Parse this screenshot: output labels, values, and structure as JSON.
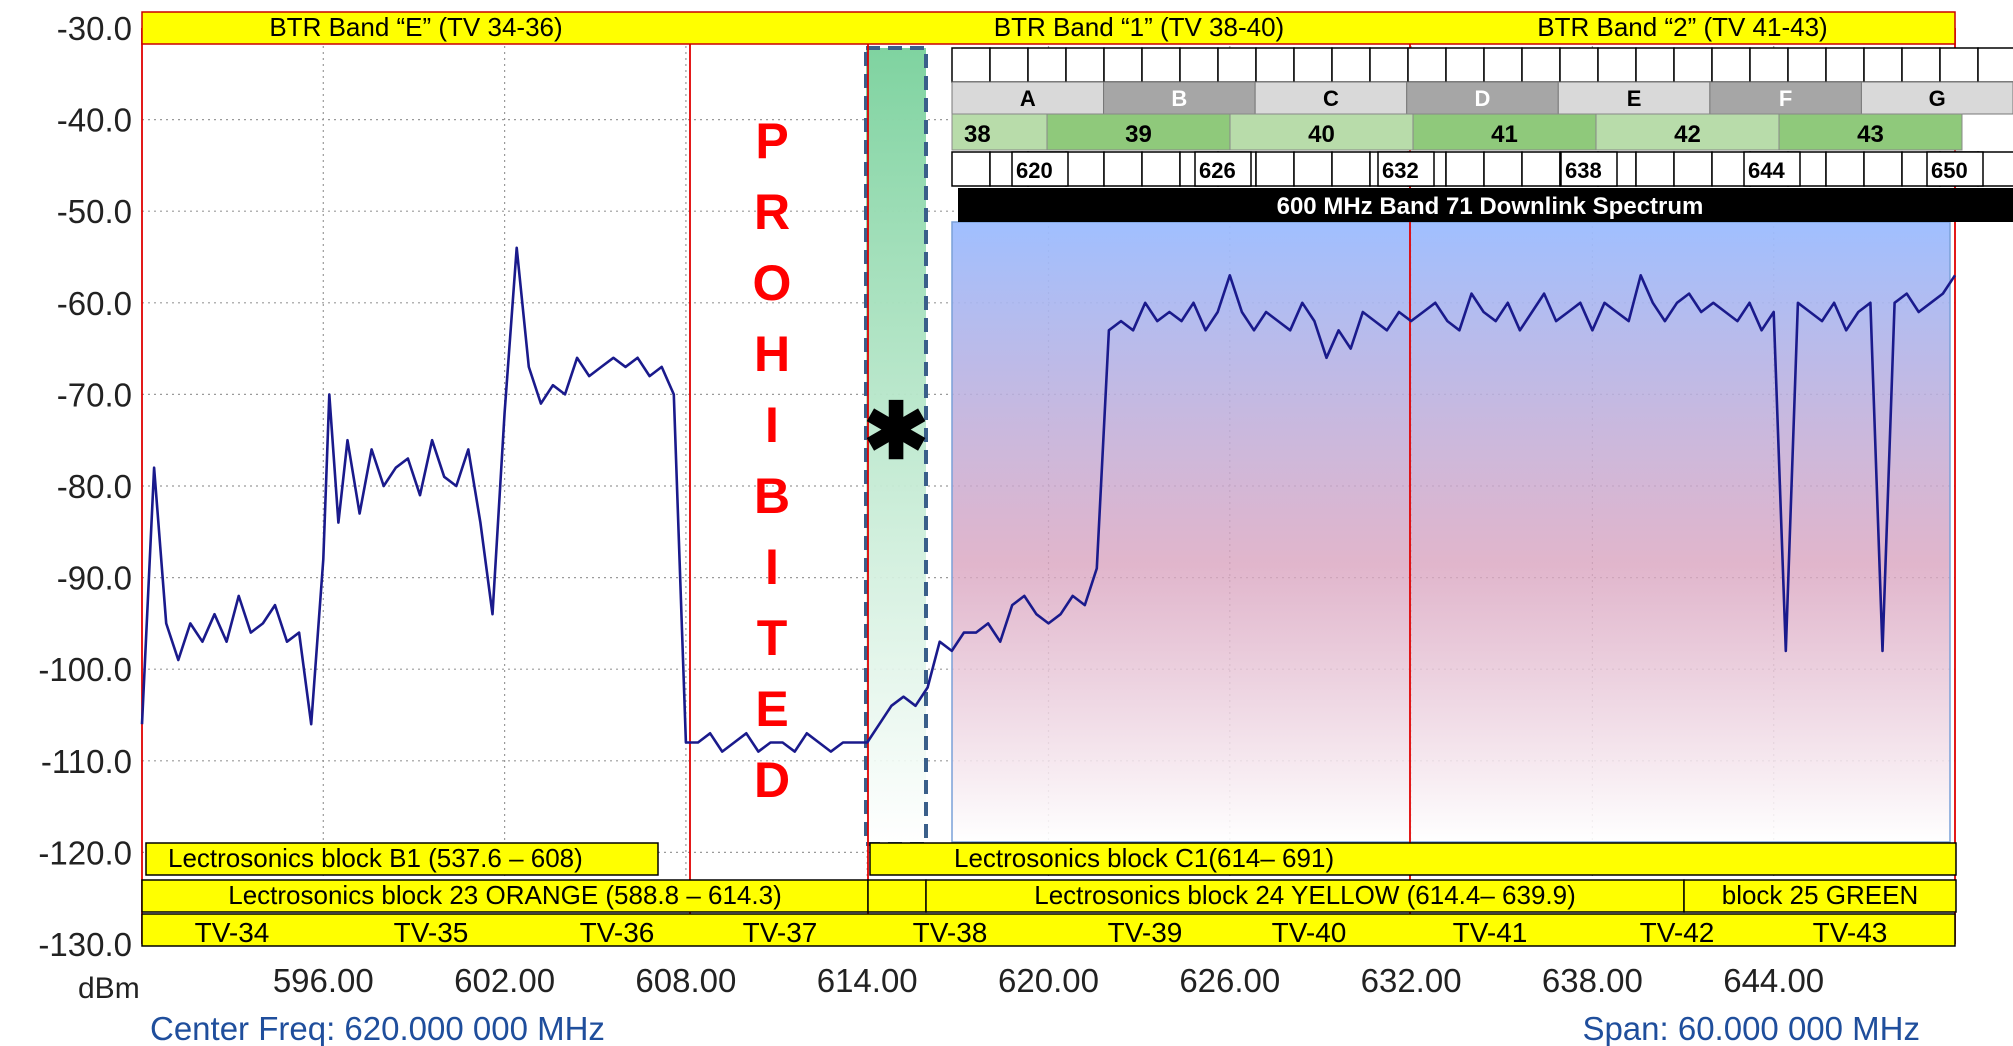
{
  "chart_data": {
    "type": "line",
    "title": "",
    "ylabel": "dBm",
    "xlim": [
      590,
      650
    ],
    "ylim": [
      -130,
      -30
    ],
    "y_ticks": [
      "-30.0",
      "-40.0",
      "-50.0",
      "-60.0",
      "-70.0",
      "-80.0",
      "-90.0",
      "-100.0",
      "-110.0",
      "-120.0",
      "-130.0"
    ],
    "x_ticks": [
      "596.00",
      "602.00",
      "608.00",
      "614.00",
      "620.00",
      "626.00",
      "632.00",
      "638.00",
      "644.00"
    ],
    "center_freq": "Center Freq: 620.000 000 MHz",
    "span": "Span: 60.000 000 MHz",
    "grid": true,
    "series": [
      {
        "x": [
          590.0,
          590.4,
          590.8,
          591.2,
          591.6,
          592.0,
          592.4,
          592.8,
          593.2,
          593.6,
          594.0,
          594.4,
          594.8,
          595.2,
          595.6,
          596.0,
          596.2,
          596.5,
          596.8,
          597.2,
          597.6,
          598.0,
          598.4,
          598.8,
          599.2,
          599.6,
          600.0,
          600.4,
          600.8,
          601.2,
          601.6,
          602.0,
          602.4,
          602.8,
          603.2,
          603.6,
          604.0,
          604.4,
          604.8,
          605.2,
          605.6,
          606.0,
          606.4,
          606.8,
          607.2,
          607.6,
          608.0,
          608.4,
          608.8,
          609.2,
          609.6,
          610.0,
          610.4,
          610.8,
          611.2,
          611.6,
          612.0,
          612.4,
          612.8,
          613.2,
          613.6,
          614.0,
          614.4,
          614.8,
          615.2,
          615.6,
          616.0,
          616.4,
          616.8,
          617.2,
          617.6,
          618.0,
          618.4,
          618.8,
          619.2,
          619.6,
          620.0,
          620.4,
          620.8,
          621.2,
          621.6,
          622.0,
          622.4,
          622.8,
          623.2,
          623.6,
          624.0,
          624.4,
          624.8,
          625.2,
          625.6,
          626.0,
          626.4,
          626.8,
          627.2,
          627.6,
          628.0,
          628.4,
          628.8,
          629.2,
          629.6,
          630.0,
          630.4,
          630.8,
          631.2,
          631.6,
          632.0,
          632.4,
          632.8,
          633.2,
          633.6,
          634.0,
          634.4,
          634.8,
          635.2,
          635.6,
          636.0,
          636.4,
          636.8,
          637.2,
          637.6,
          638.0,
          638.4,
          638.8,
          639.2,
          639.6,
          640.0,
          640.4,
          640.8,
          641.2,
          641.6,
          642.0,
          642.4,
          642.8,
          643.2,
          643.6,
          644.0,
          644.4,
          644.8,
          645.2,
          645.6,
          646.0,
          646.4,
          646.8,
          647.2,
          647.6,
          648.0,
          648.4,
          648.8,
          649.2,
          649.6,
          650.0
        ],
        "values": [
          -106,
          -78,
          -95,
          -99,
          -95,
          -97,
          -94,
          -97,
          -92,
          -96,
          -95,
          -93,
          -97,
          -96,
          -106,
          -88,
          -70,
          -84,
          -75,
          -83,
          -76,
          -80,
          -78,
          -77,
          -81,
          -75,
          -79,
          -80,
          -76,
          -84,
          -94,
          -72,
          -54,
          -67,
          -71,
          -69,
          -70,
          -66,
          -68,
          -67,
          -66,
          -67,
          -66,
          -68,
          -67,
          -70,
          -108,
          -108,
          -107,
          -109,
          -108,
          -107,
          -109,
          -108,
          -108,
          -109,
          -107,
          -108,
          -109,
          -108,
          -108,
          -108,
          -106,
          -104,
          -103,
          -104,
          -102,
          -97,
          -98,
          -96,
          -96,
          -95,
          -97,
          -93,
          -92,
          -94,
          -95,
          -94,
          -92,
          -93,
          -89,
          -63,
          -62,
          -63,
          -60,
          -62,
          -61,
          -62,
          -60,
          -63,
          -61,
          -57,
          -61,
          -63,
          -61,
          -62,
          -63,
          -60,
          -62,
          -66,
          -63,
          -65,
          -61,
          -62,
          -63,
          -61,
          -62,
          -61,
          -60,
          -62,
          -63,
          -59,
          -61,
          -62,
          -60,
          -63,
          -61,
          -59,
          -62,
          -61,
          -60,
          -63,
          -60,
          -61,
          -62,
          -57,
          -60,
          -62,
          -60,
          -59,
          -61,
          -60,
          -61,
          -62,
          -60,
          -63,
          -61,
          -98,
          -60,
          -61,
          -62,
          -60,
          -63,
          -61,
          -60,
          -98,
          -60,
          -59,
          -61,
          -60,
          -59,
          -57
        ]
      }
    ]
  },
  "overlays": {
    "btr_band_e": "BTR Band “E” (TV 34-36)",
    "btr_band_1": "BTR Band “1” (TV 38-40)",
    "btr_band_2": "BTR Band “2” (TV 41-43)",
    "prohibited_letters": [
      "P",
      "R",
      "O",
      "H",
      "I",
      "B",
      "I",
      "T",
      "E",
      "D"
    ],
    "asterisk": "✱",
    "lect_b1": "Lectrosonics block B1 (537.6 – 608)",
    "lect_c1": "Lectrosonics block C1(614– 691)",
    "lect_23": "Lectrosonics block 23 ORANGE (588.8 – 614.3)",
    "lect_24": "Lectrosonics block 24 YELLOW (614.4– 639.9)",
    "lect_25": "block 25 GREEN",
    "tv_channels": [
      "TV-34",
      "TV-35",
      "TV-36",
      "TV-37",
      "TV-38",
      "TV-39",
      "TV-40",
      "TV-41",
      "TV-42",
      "TV-43"
    ]
  },
  "band71": {
    "title": "600 MHz Band 71 Downlink Spectrum",
    "blocks": [
      "A",
      "B",
      "C",
      "D",
      "E",
      "F",
      "G"
    ],
    "channels": [
      "38",
      "39",
      "40",
      "41",
      "42",
      "43"
    ],
    "freqs": [
      "620",
      "626",
      "632",
      "638",
      "644",
      "650"
    ],
    "colors": {
      "header_bg": "#000000",
      "block_light": "#d9d9d9",
      "block_dark": "#a6a6a6",
      "chan_light": "#b8dcaa",
      "chan_dark": "#8fc97b",
      "band_overlay_top": "#9bbcff",
      "band_overlay_bottom": "#f5c2c2"
    }
  },
  "colors": {
    "trace": "#1a1a8c",
    "yellow_label": "#ffff00",
    "red_line": "#e00000",
    "prohibited_text": "#ff0000",
    "axis_text": "#222222",
    "freq_text": "#1f4e9c",
    "green_zone": "#7fd3a0"
  }
}
